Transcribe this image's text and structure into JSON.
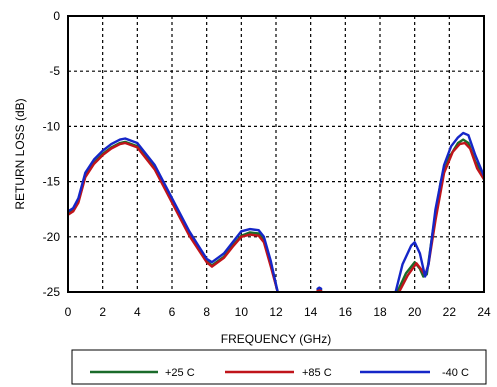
{
  "chart_data": {
    "type": "line",
    "title": "",
    "xlabel": "FREQUENCY (GHz)",
    "ylabel": "RETURN LOSS (dB)",
    "xlim": [
      0,
      24
    ],
    "ylim": [
      -25,
      0
    ],
    "xticks": [
      "0",
      "2",
      "4",
      "6",
      "8",
      "10",
      "12",
      "14",
      "16",
      "18",
      "20",
      "22",
      "24"
    ],
    "yticks": [
      "0",
      "-5",
      "-10",
      "-15",
      "-20",
      "-25"
    ],
    "grid": true,
    "grid_style": "dashed",
    "legend_position": "bottom",
    "series": [
      {
        "name": "+25 C",
        "color": "#1a6b2a",
        "segments": [
          [
            [
              0,
              -17.9
            ],
            [
              0.3,
              -17.6
            ],
            [
              0.6,
              -16.8
            ],
            [
              1,
              -14.5
            ],
            [
              1.5,
              -13.3
            ],
            [
              2,
              -12.5
            ],
            [
              2.5,
              -11.9
            ],
            [
              3,
              -11.5
            ],
            [
              3.3,
              -11.4
            ],
            [
              4,
              -11.8
            ],
            [
              5,
              -13.8
            ],
            [
              6,
              -16.8
            ],
            [
              7,
              -19.8
            ],
            [
              8,
              -22.2
            ],
            [
              8.3,
              -22.6
            ],
            [
              9,
              -21.8
            ],
            [
              9.5,
              -20.8
            ],
            [
              10,
              -19.9
            ],
            [
              10.5,
              -19.6
            ],
            [
              11,
              -19.7
            ],
            [
              11.3,
              -20.3
            ],
            [
              11.7,
              -22.5
            ],
            [
              12.1,
              -25
            ]
          ],
          [
            [
              14.4,
              -24.8
            ],
            [
              14.5,
              -24.7
            ],
            [
              14.6,
              -24.8
            ]
          ],
          [
            [
              19,
              -25
            ],
            [
              19.5,
              -23.3
            ],
            [
              20,
              -22.3
            ],
            [
              20.3,
              -22.9
            ],
            [
              20.5,
              -23.6
            ],
            [
              20.7,
              -23.4
            ],
            [
              21,
              -20
            ],
            [
              21.5,
              -15
            ],
            [
              22,
              -12.8
            ],
            [
              22.5,
              -11.5
            ],
            [
              22.8,
              -11.2
            ],
            [
              23.1,
              -11.5
            ],
            [
              23.5,
              -13.2
            ],
            [
              24,
              -14.4
            ]
          ]
        ]
      },
      {
        "name": "+85 C",
        "color": "#c0141a",
        "segments": [
          [
            [
              0,
              -18
            ],
            [
              0.3,
              -17.7
            ],
            [
              0.6,
              -16.9
            ],
            [
              1,
              -14.6
            ],
            [
              1.5,
              -13.4
            ],
            [
              2,
              -12.6
            ],
            [
              2.5,
              -12
            ],
            [
              3,
              -11.6
            ],
            [
              3.3,
              -11.5
            ],
            [
              4,
              -11.9
            ],
            [
              5,
              -13.9
            ],
            [
              6,
              -16.9
            ],
            [
              7,
              -19.9
            ],
            [
              8,
              -22.3
            ],
            [
              8.3,
              -22.7
            ],
            [
              9,
              -21.9
            ],
            [
              9.5,
              -20.9
            ],
            [
              10,
              -20
            ],
            [
              10.5,
              -19.8
            ],
            [
              11,
              -19.9
            ],
            [
              11.3,
              -20.5
            ],
            [
              11.7,
              -22.7
            ],
            [
              12.1,
              -25
            ]
          ],
          [
            [
              14.4,
              -24.9
            ],
            [
              14.5,
              -24.8
            ],
            [
              14.6,
              -24.9
            ]
          ],
          [
            [
              19.1,
              -25
            ],
            [
              19.6,
              -23.5
            ],
            [
              20.1,
              -22.4
            ],
            [
              20.4,
              -23
            ],
            [
              20.6,
              -23.5
            ],
            [
              20.8,
              -22.5
            ],
            [
              21.2,
              -18.5
            ],
            [
              21.7,
              -14.2
            ],
            [
              22.2,
              -12.3
            ],
            [
              22.6,
              -11.6
            ],
            [
              22.9,
              -11.5
            ],
            [
              23.2,
              -12
            ],
            [
              23.6,
              -13.8
            ],
            [
              24,
              -14.8
            ]
          ]
        ]
      },
      {
        "name": "-40 C",
        "color": "#1526c8",
        "segments": [
          [
            [
              0,
              -17.7
            ],
            [
              0.3,
              -17.4
            ],
            [
              0.6,
              -16.5
            ],
            [
              1,
              -14.2
            ],
            [
              1.5,
              -13
            ],
            [
              2,
              -12.2
            ],
            [
              2.5,
              -11.6
            ],
            [
              3,
              -11.2
            ],
            [
              3.3,
              -11.1
            ],
            [
              4,
              -11.5
            ],
            [
              5,
              -13.5
            ],
            [
              6,
              -16.5
            ],
            [
              7,
              -19.5
            ],
            [
              8,
              -22
            ],
            [
              8.3,
              -22.3
            ],
            [
              9,
              -21.5
            ],
            [
              9.5,
              -20.5
            ],
            [
              10,
              -19.5
            ],
            [
              10.5,
              -19.3
            ],
            [
              11,
              -19.4
            ],
            [
              11.3,
              -20
            ],
            [
              11.7,
              -22.2
            ],
            [
              12.1,
              -25
            ]
          ],
          [
            [
              14.4,
              -24.7
            ],
            [
              14.5,
              -24.6
            ],
            [
              14.6,
              -24.7
            ]
          ],
          [
            [
              18.9,
              -25
            ],
            [
              19.3,
              -22.5
            ],
            [
              19.8,
              -20.8
            ],
            [
              20,
              -20.5
            ],
            [
              20.3,
              -21.5
            ],
            [
              20.6,
              -23.6
            ],
            [
              20.8,
              -22.5
            ],
            [
              21.2,
              -17.5
            ],
            [
              21.7,
              -13.5
            ],
            [
              22.1,
              -11.8
            ],
            [
              22.5,
              -11
            ],
            [
              22.8,
              -10.6
            ],
            [
              23.1,
              -10.8
            ],
            [
              23.5,
              -12.6
            ],
            [
              24,
              -14.5
            ]
          ]
        ]
      }
    ]
  }
}
